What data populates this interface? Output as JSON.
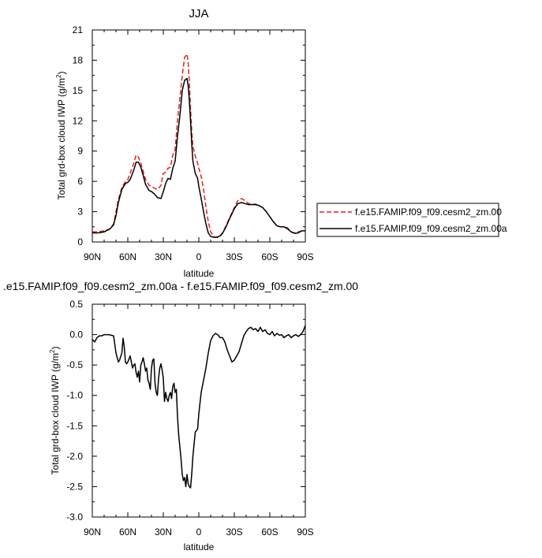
{
  "chart_data": [
    {
      "type": "line",
      "title": "JJA",
      "xlabel": "latitude",
      "ylabel": "Total grd-box cloud IWP (g/m",
      "ylabel_sup": "2",
      "ylabel_close": ")",
      "xlim": [
        90,
        -90
      ],
      "ylim": [
        0,
        21
      ],
      "xticks": [
        90,
        60,
        30,
        0,
        -30,
        -60,
        -90
      ],
      "xtick_labels": [
        "90N",
        "60N",
        "30N",
        "0",
        "30S",
        "60S",
        "90S"
      ],
      "yticks": [
        0,
        3,
        6,
        9,
        12,
        15,
        18,
        21
      ],
      "ytick_labels": [
        "0",
        "3",
        "6",
        "9",
        "12",
        "15",
        "18",
        "21"
      ],
      "legend": "outside-right",
      "series": [
        {
          "name": "f.e15.FAMIP.f09_f09.cesm2_zm.00",
          "color": "#e8201c",
          "dash": "dashed",
          "x": [
            90,
            85,
            80,
            75,
            72,
            70,
            68,
            65,
            62,
            60,
            58,
            55,
            53,
            51,
            49,
            47,
            45,
            42,
            40,
            37,
            35,
            32,
            30,
            28,
            26,
            24,
            22,
            20,
            18,
            16,
            14,
            12,
            10,
            9,
            8,
            7,
            6,
            5,
            3,
            1,
            0,
            -2,
            -4,
            -6,
            -8,
            -10,
            -13,
            -16,
            -18,
            -20,
            -23,
            -26,
            -30,
            -33,
            -36,
            -39,
            -42,
            -45,
            -48,
            -51,
            -54,
            -57,
            -60,
            -63,
            -66,
            -69,
            -72,
            -75,
            -78,
            -81,
            -84,
            -87,
            -90
          ],
          "y": [
            1.0,
            1.0,
            1.1,
            1.3,
            1.8,
            3.0,
            4.2,
            5.4,
            6.0,
            6.2,
            6.8,
            7.8,
            8.6,
            8.4,
            7.8,
            7.0,
            6.2,
            5.6,
            5.5,
            5.3,
            5.2,
            5.6,
            6.8,
            6.9,
            7.3,
            7.4,
            8.6,
            9.2,
            12.0,
            14.2,
            16.5,
            18.3,
            18.6,
            17.8,
            15.8,
            13.2,
            11.0,
            9.5,
            8.5,
            7.8,
            7.3,
            6.5,
            5.2,
            3.5,
            2.0,
            1.0,
            0.5,
            0.45,
            0.6,
            0.9,
            1.6,
            2.4,
            3.4,
            4.1,
            4.3,
            4.1,
            3.8,
            3.75,
            3.75,
            3.6,
            3.4,
            3.0,
            2.5,
            2.0,
            1.6,
            1.5,
            1.5,
            1.4,
            1.0,
            0.9,
            1.0,
            1.1,
            1.1
          ]
        },
        {
          "name": "f.e15.FAMIP.f09_f09.cesm2_zm.00a",
          "color": "#000000",
          "dash": "solid",
          "x": [
            90,
            85,
            80,
            75,
            72,
            70,
            68,
            65,
            62,
            60,
            58,
            55,
            53,
            51,
            49,
            47,
            45,
            42,
            40,
            37,
            35,
            32,
            30,
            28,
            26,
            24,
            22,
            20,
            18,
            16,
            14,
            12,
            10,
            9,
            8,
            7,
            6,
            5,
            3,
            1,
            0,
            -2,
            -4,
            -6,
            -8,
            -10,
            -13,
            -16,
            -18,
            -20,
            -23,
            -26,
            -30,
            -33,
            -36,
            -39,
            -42,
            -45,
            -48,
            -51,
            -54,
            -57,
            -60,
            -63,
            -66,
            -69,
            -72,
            -75,
            -78,
            -81,
            -84,
            -87,
            -90
          ],
          "y": [
            0.9,
            0.9,
            1.0,
            1.3,
            1.7,
            2.6,
            3.9,
            5.2,
            5.8,
            5.9,
            6.2,
            7.1,
            7.9,
            7.9,
            7.4,
            6.6,
            5.7,
            5.1,
            5.0,
            4.7,
            4.4,
            4.3,
            5.0,
            5.8,
            6.3,
            6.2,
            7.3,
            8.0,
            10.5,
            12.5,
            15.0,
            16.0,
            16.2,
            15.5,
            14.0,
            12.0,
            9.8,
            8.0,
            6.8,
            6.3,
            5.5,
            4.3,
            3.0,
            1.8,
            0.9,
            0.55,
            0.45,
            0.5,
            0.6,
            0.85,
            1.5,
            2.3,
            3.3,
            3.8,
            3.9,
            3.8,
            3.7,
            3.7,
            3.7,
            3.6,
            3.4,
            3.0,
            2.5,
            2.0,
            1.6,
            1.5,
            1.5,
            1.3,
            1.0,
            0.85,
            0.9,
            1.1,
            1.1
          ]
        }
      ]
    },
    {
      "type": "line",
      "title": ".e15.FAMIP.f09_f09.cesm2_zm.00a - f.e15.FAMIP.f09_f09.cesm2_zm.00",
      "xlabel": "latitude",
      "ylabel": "Total grd-box cloud IWP (g/m",
      "ylabel_sup": "2",
      "ylabel_close": ")",
      "xlim": [
        90,
        -90
      ],
      "ylim": [
        -3.0,
        0.5
      ],
      "xticks": [
        90,
        60,
        30,
        0,
        -30,
        -60,
        -90
      ],
      "xtick_labels": [
        "90N",
        "60N",
        "30N",
        "0",
        "30S",
        "60S",
        "90S"
      ],
      "yticks": [
        -3.0,
        -2.5,
        -2.0,
        -1.5,
        -1.0,
        -0.5,
        0.0,
        0.5
      ],
      "ytick_labels": [
        "-3.0",
        "-2.5",
        "-2.0",
        "-1.5",
        "-1.0",
        "-0.5",
        "0.0",
        "0.5"
      ],
      "series": [
        {
          "color": "#000000",
          "dash": "solid",
          "x": [
            90,
            88,
            86,
            84,
            82,
            80,
            76,
            72,
            70,
            68,
            67,
            65,
            64,
            63,
            62,
            61,
            60,
            58,
            57,
            56,
            55,
            54,
            53,
            52,
            51,
            50,
            49,
            48,
            47,
            46,
            45,
            44,
            43,
            42,
            41,
            40,
            39,
            38,
            37,
            36,
            35,
            34,
            33,
            32,
            31,
            30,
            29,
            28,
            27,
            26,
            25,
            24,
            23,
            22,
            21,
            20,
            19,
            18,
            17,
            16,
            15,
            14,
            13,
            12,
            11,
            10,
            9,
            8,
            7,
            6,
            5,
            4,
            3,
            2,
            1,
            0,
            -2,
            -4,
            -6,
            -8,
            -10,
            -12,
            -14,
            -16,
            -18,
            -20,
            -22,
            -24,
            -26,
            -28,
            -30,
            -32,
            -34,
            -36,
            -38,
            -40,
            -42,
            -44,
            -46,
            -48,
            -50,
            -52,
            -54,
            -56,
            -58,
            -60,
            -62,
            -64,
            -66,
            -68,
            -70,
            -72,
            -74,
            -76,
            -78,
            -80,
            -82,
            -84,
            -86,
            -88,
            -90
          ],
          "y": [
            -0.08,
            -0.12,
            -0.05,
            -0.02,
            -0.02,
            0.0,
            0.0,
            -0.02,
            -0.3,
            -0.45,
            -0.42,
            -0.3,
            -0.06,
            -0.2,
            -0.45,
            -0.48,
            -0.45,
            -0.35,
            -0.45,
            -0.55,
            -0.5,
            -0.48,
            -0.62,
            -0.7,
            -0.6,
            -0.78,
            -0.5,
            -0.45,
            -0.38,
            -0.48,
            -0.6,
            -0.55,
            -0.75,
            -0.8,
            -0.9,
            -0.55,
            -0.42,
            -0.4,
            -0.8,
            -0.95,
            -1.0,
            -0.72,
            -0.55,
            -0.48,
            -0.58,
            -0.72,
            -1.1,
            -0.95,
            -1.05,
            -1.1,
            -1.0,
            -0.95,
            -1.05,
            -0.85,
            -0.8,
            -0.95,
            -0.9,
            -1.35,
            -1.65,
            -1.85,
            -2.05,
            -2.3,
            -2.4,
            -2.35,
            -2.5,
            -2.3,
            -2.45,
            -2.5,
            -2.52,
            -2.3,
            -2.0,
            -1.8,
            -1.6,
            -1.58,
            -1.55,
            -1.3,
            -0.95,
            -0.75,
            -0.55,
            -0.3,
            -0.1,
            -0.02,
            0.02,
            0.0,
            -0.05,
            -0.05,
            -0.12,
            -0.25,
            -0.35,
            -0.45,
            -0.42,
            -0.35,
            -0.28,
            -0.15,
            -0.02,
            0.05,
            0.1,
            0.12,
            0.08,
            0.1,
            0.05,
            0.12,
            0.05,
            0.08,
            0.02,
            0.0,
            0.05,
            -0.02,
            0.02,
            -0.01,
            0.0,
            -0.05,
            -0.02,
            0.0,
            -0.05,
            -0.02,
            0.0,
            -0.03,
            0.0,
            0.05,
            0.15
          ]
        }
      ]
    }
  ]
}
